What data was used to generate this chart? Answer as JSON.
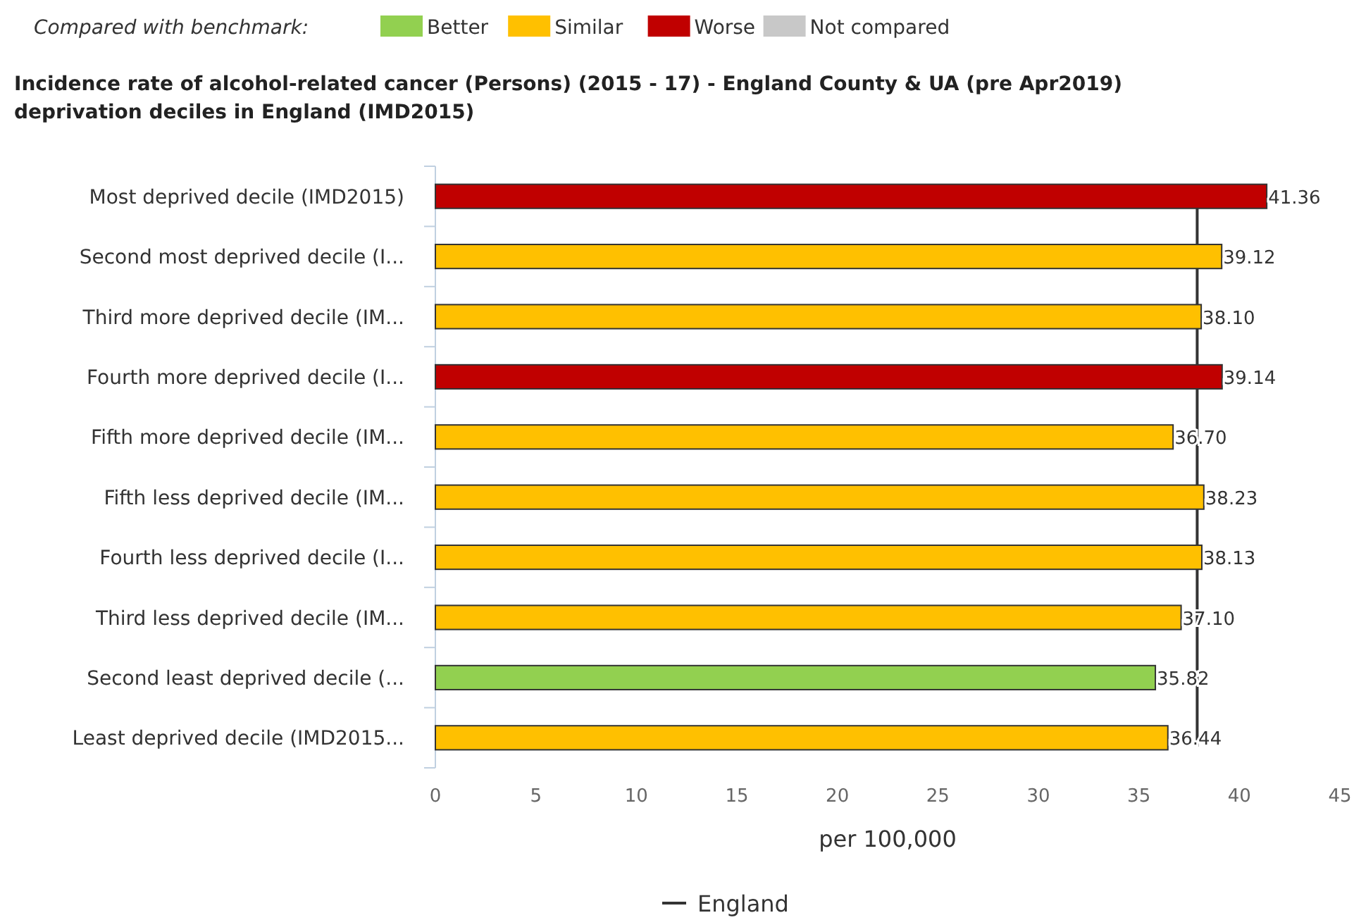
{
  "chart_data": {
    "type": "bar",
    "orientation": "horizontal",
    "title": "Incidence rate of alcohol-related cancer (Persons) (2015 - 17) - England County & UA (pre Apr2019) deprivation deciles in England (IMD2015)",
    "legend_title": "Compared with benchmark:",
    "legend": "top left",
    "xlabel": "per 100,000",
    "categories": [
      "Most deprived decile (IMD2015)",
      "Second most deprived decile (I...",
      "Third more deprived decile (IM...",
      "Fourth more deprived decile (I...",
      "Fifth more deprived decile (IM...",
      "Fifth less deprived decile (IM...",
      "Fourth less deprived decile (I...",
      "Third less deprived decile (IM...",
      "Second least deprived decile (...",
      "Least deprived decile (IMD2015..."
    ],
    "series": [
      {
        "name": "Better",
        "color": "#92d050",
        "values": [
          null,
          null,
          null,
          null,
          null,
          null,
          null,
          null,
          35.82,
          null
        ],
        "value_labels": [
          null,
          null,
          null,
          null,
          null,
          null,
          null,
          null,
          "35.82",
          null
        ]
      },
      {
        "name": "Similar",
        "color": "#ffc000",
        "values": [
          null,
          39.12,
          38.1,
          null,
          36.7,
          38.23,
          38.13,
          37.1,
          null,
          36.44
        ],
        "value_labels": [
          null,
          "39.12",
          "38.10",
          null,
          "36.70",
          "38.23",
          "38.13",
          "37.10",
          null,
          "36.44"
        ]
      },
      {
        "name": "Worse",
        "color": "#c00000",
        "values": [
          41.36,
          null,
          null,
          39.14,
          null,
          null,
          null,
          null,
          null,
          null
        ],
        "value_labels": [
          "41.36",
          null,
          null,
          "39.14",
          null,
          null,
          null,
          null,
          null,
          null
        ]
      },
      {
        "name": "Not compared",
        "color": "#c8c8c8",
        "values": [
          null,
          null,
          null,
          null,
          null,
          null,
          null,
          null,
          null,
          null
        ]
      }
    ],
    "xlim": [
      0,
      45
    ],
    "xticks": [
      0,
      5,
      10,
      15,
      20,
      25,
      30,
      35,
      40,
      45
    ],
    "ref_lines": [
      {
        "axis": "x",
        "value": 37.9,
        "label": "England",
        "color": "#333333"
      }
    ]
  }
}
